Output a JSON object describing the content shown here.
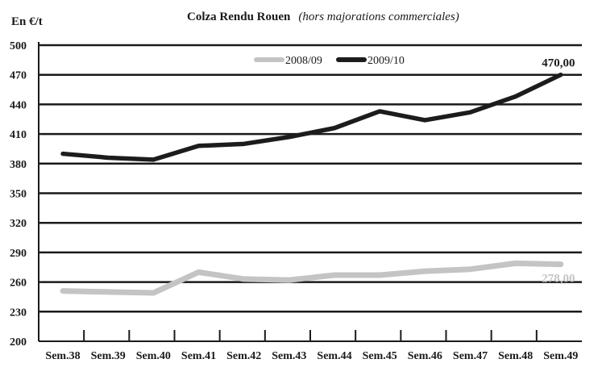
{
  "chart_data": {
    "type": "line",
    "title": "Colza Rendu Rouen",
    "subtitle": "(hors majorations commerciales)",
    "ylabel": "En €/t",
    "xlabel": "",
    "ylim": [
      200,
      500
    ],
    "yticks": [
      500,
      470,
      440,
      410,
      380,
      350,
      320,
      290,
      260,
      230,
      200
    ],
    "grid": true,
    "legend_position": "top",
    "categories": [
      "Sem.38",
      "Sem.39",
      "Sem.40",
      "Sem.41",
      "Sem.42",
      "Sem.43",
      "Sem.44",
      "Sem.45",
      "Sem.46",
      "Sem.47",
      "Sem.48",
      "Sem.49"
    ],
    "series": [
      {
        "name": "2008/09",
        "color": "#c4c4c4",
        "values": [
          251,
          250,
          249,
          270,
          263,
          262,
          267,
          267,
          271,
          273,
          279,
          278
        ],
        "end_label": "278,00"
      },
      {
        "name": "2009/10",
        "color": "#1c1c1c",
        "values": [
          390,
          386,
          384,
          398,
          400,
          407,
          416,
          433,
          424,
          432,
          448,
          470
        ],
        "end_label": "470,00"
      }
    ]
  }
}
